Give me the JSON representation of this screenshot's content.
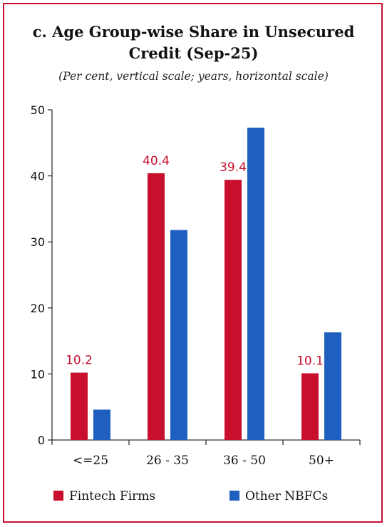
{
  "chart_data": {
    "type": "bar",
    "title": "c. Age Group-wise Share in Unsecured Credit (Sep-25)",
    "title_line1": "c. Age Group-wise Share in Unsecured",
    "title_line2": "Credit (Sep-25)",
    "subtitle": "(Per cent, vertical scale; years, horizontal scale)",
    "categories": [
      "<=25",
      "26 - 35",
      "36 - 50",
      "50+"
    ],
    "series": [
      {
        "name": "Fintech Firms",
        "color": "#c8102e",
        "values": [
          10.2,
          40.4,
          39.4,
          10.1
        ],
        "labels": [
          "10.2",
          "40.4",
          "39.4",
          "10.1"
        ]
      },
      {
        "name": "Other NBFCs",
        "color": "#1f5fbf",
        "values": [
          4.6,
          31.8,
          47.3,
          16.3
        ]
      }
    ],
    "ylim": [
      0,
      50
    ],
    "yticks": [
      0,
      10,
      20,
      30,
      40,
      50
    ],
    "xlabel": "",
    "ylabel": "",
    "grid": false,
    "legend_position": "bottom"
  }
}
